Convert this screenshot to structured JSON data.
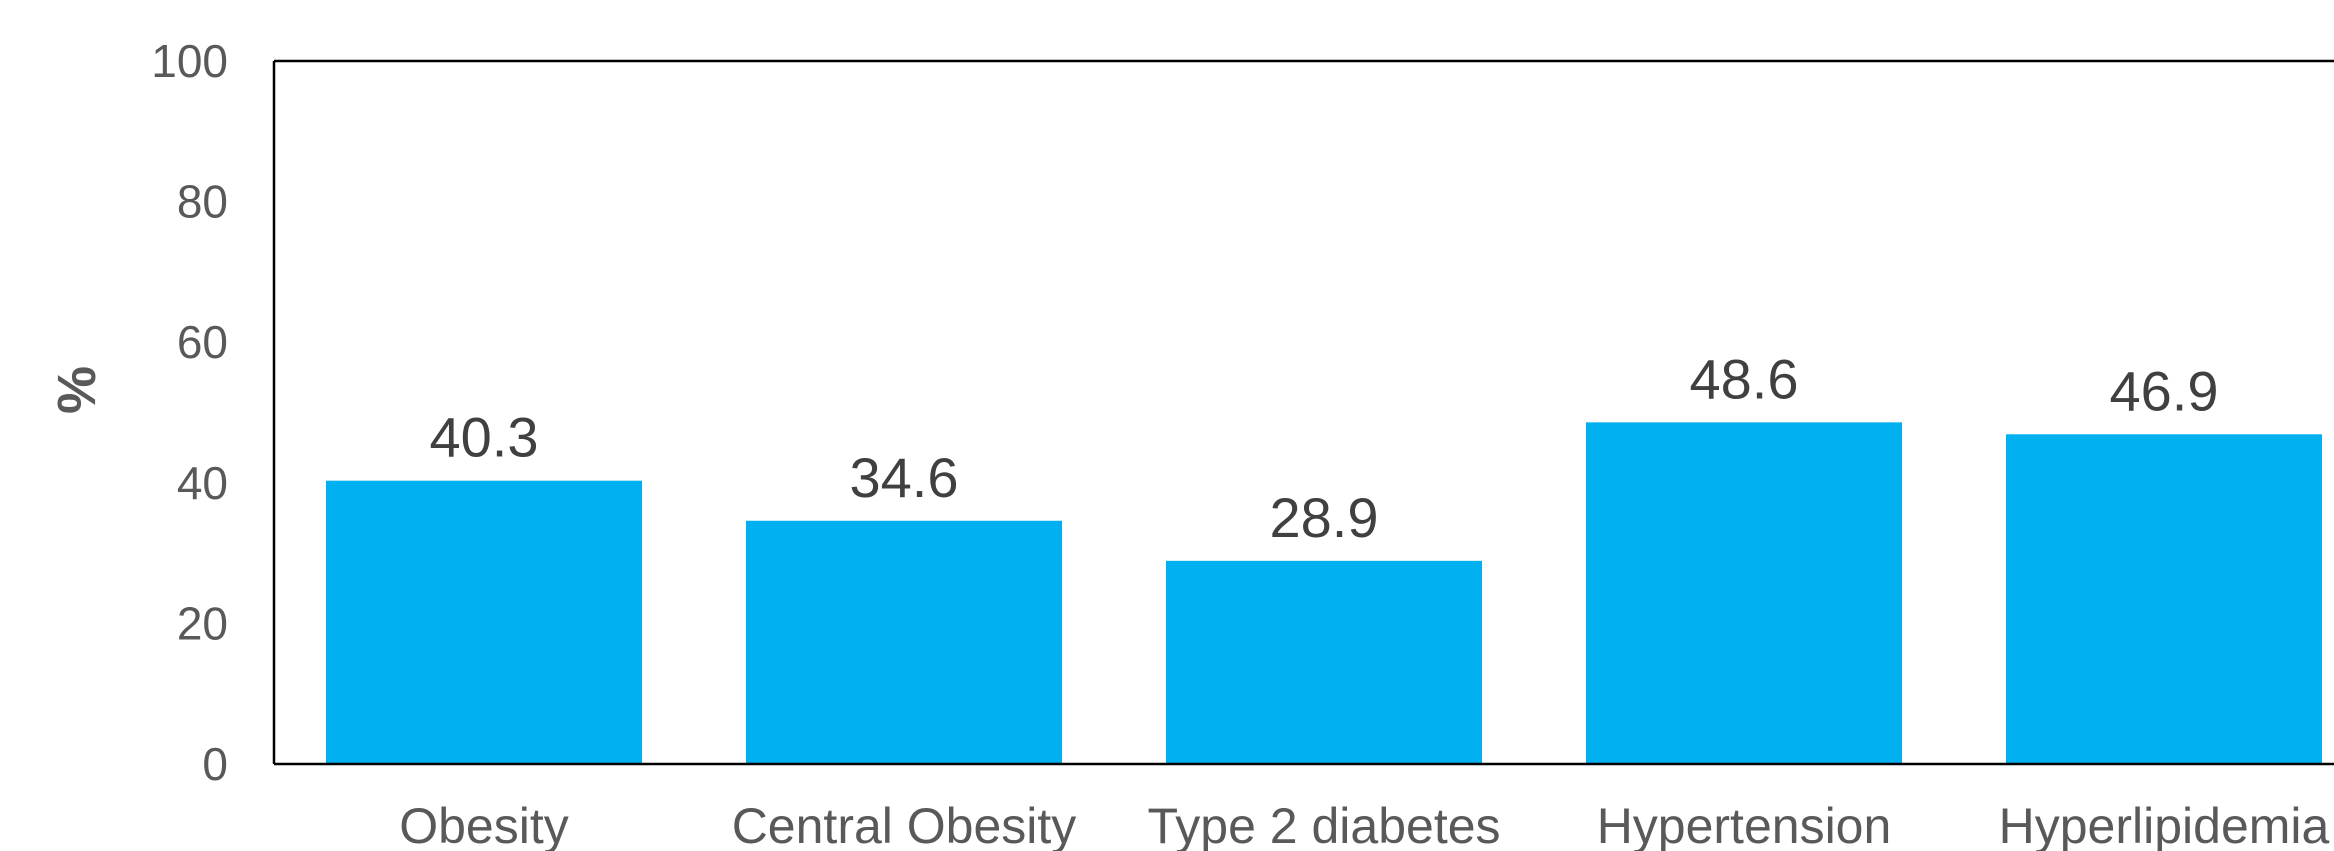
{
  "chart_data": {
    "type": "bar",
    "categories": [
      "Obesity",
      "Central Obesity",
      "Type 2 diabetes",
      "Hypertension",
      "Hyperlipidemia"
    ],
    "values": [
      40.3,
      34.6,
      28.9,
      48.6,
      46.9
    ],
    "data_labels": [
      "40.3",
      "34.6",
      "28.9",
      "48.6",
      "46.9"
    ],
    "title": "",
    "xlabel": "",
    "ylabel": "%",
    "ylim": [
      0,
      100
    ],
    "yticks": [
      0,
      20,
      40,
      60,
      80,
      100
    ],
    "ytick_labels": [
      "0",
      "20",
      "40",
      "60",
      "80",
      "100"
    ],
    "grid": false,
    "legend": "none",
    "colors": {
      "bar": "#00B0F0",
      "axis": "#000000",
      "tick_text": "#595959",
      "data_label_text": "#404040"
    }
  }
}
